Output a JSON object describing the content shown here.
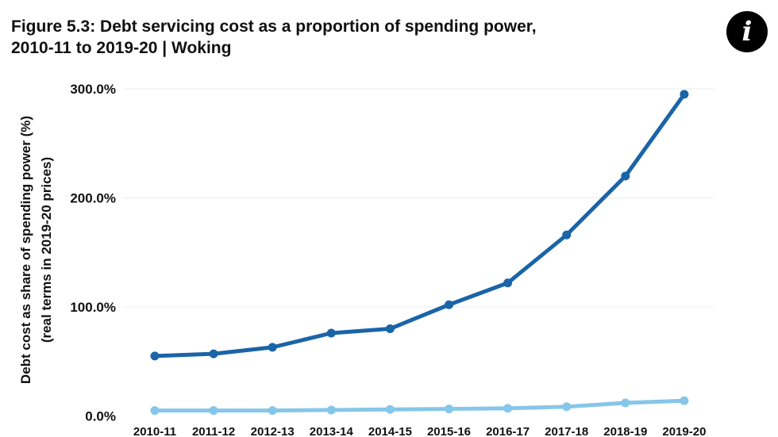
{
  "title_line1": "Figure 5.3: Debt servicing cost as a proportion of spending power,",
  "title_line2": "2010-11 to 2019-20  | Woking",
  "info_icon": {
    "name": "info-icon",
    "glyph": "i"
  },
  "chart_data": {
    "type": "line",
    "ylabel_line1": "Debt cost as share of spending power (%)",
    "ylabel_line2": "(real terms in 2019-20 prices)",
    "categories": [
      "2010-11",
      "2011-12",
      "2012-13",
      "2013-14",
      "2014-15",
      "2015-16",
      "2016-17",
      "2017-18",
      "2018-19",
      "2019-20"
    ],
    "yticks": [
      0,
      100,
      200,
      300
    ],
    "ytick_labels": [
      "0.0%",
      "100.0%",
      "200.0%",
      "300.0%"
    ],
    "ylim": [
      0,
      300
    ],
    "grid": true,
    "series": [
      {
        "color": "#1a64a8",
        "values": [
          55,
          57,
          63,
          76,
          80,
          102,
          122,
          166,
          220,
          295
        ]
      },
      {
        "color": "#86c6e8",
        "values": [
          5,
          5,
          5,
          5.5,
          6,
          6.5,
          7,
          8.5,
          12,
          14
        ]
      }
    ]
  }
}
